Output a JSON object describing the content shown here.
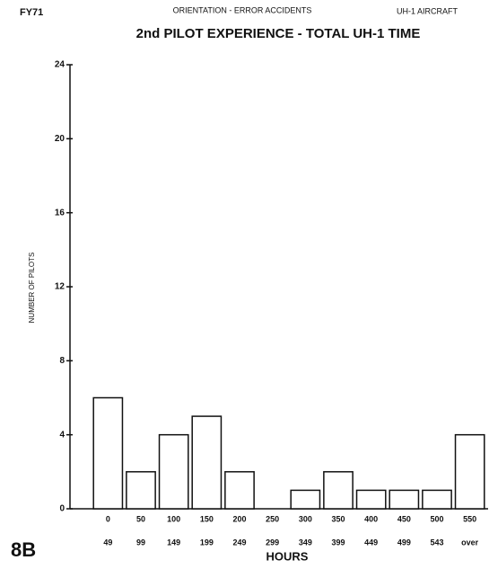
{
  "chart_data": {
    "type": "bar",
    "corner_left": "FY71",
    "header": "ORIENTATION - ERROR ACCIDENTS",
    "corner_right": "UH-1 AIRCRAFT",
    "title": "2nd PILOT EXPERIENCE - TOTAL UH-1 TIME",
    "ylabel": "NUMBER OF PILOTS",
    "xlabel": "HOURS",
    "figure_label": "8B",
    "categories": [
      [
        "0",
        "49"
      ],
      [
        "50",
        "99"
      ],
      [
        "100",
        "149"
      ],
      [
        "150",
        "199"
      ],
      [
        "200",
        "249"
      ],
      [
        "250",
        "299"
      ],
      [
        "300",
        "349"
      ],
      [
        "350",
        "399"
      ],
      [
        "400",
        "449"
      ],
      [
        "450",
        "499"
      ],
      [
        "500",
        "543"
      ],
      [
        "550",
        "over"
      ]
    ],
    "values": [
      6,
      2,
      4,
      5,
      2,
      0,
      1,
      2,
      1,
      1,
      1,
      4
    ],
    "color": "#ffffff",
    "ylim": [
      0,
      24
    ],
    "yticks": [
      0,
      4,
      8,
      12,
      16,
      20,
      24
    ],
    "grid": false
  }
}
